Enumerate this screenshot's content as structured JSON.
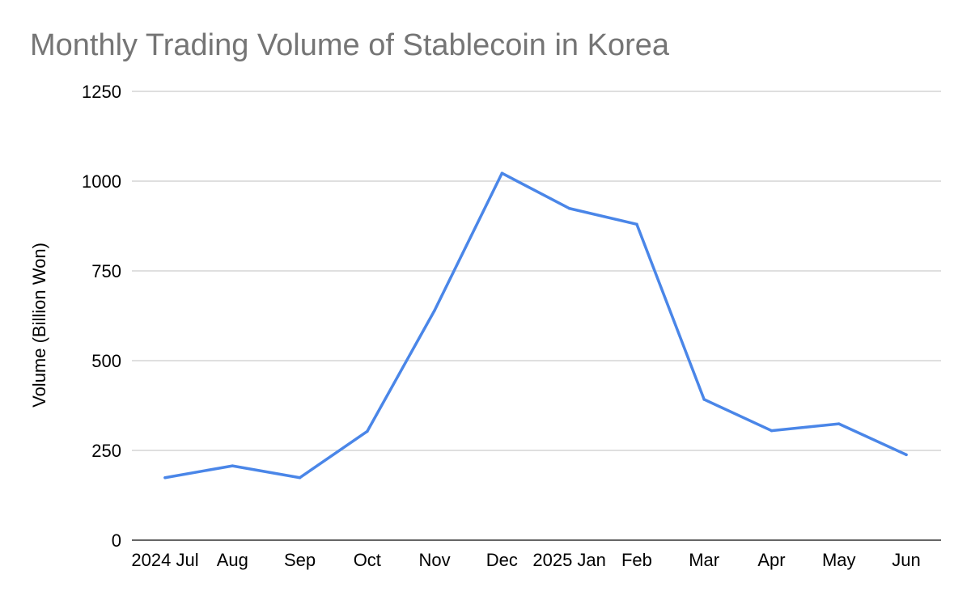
{
  "chart_data": {
    "type": "line",
    "title": "Monthly Trading Volume of Stablecoin in Korea",
    "xlabel": "",
    "ylabel": "Volume (Billion Won)",
    "categories": [
      "2024 Jul",
      "Aug",
      "Sep",
      "Oct",
      "Nov",
      "Dec",
      "2025 Jan",
      "Feb",
      "Mar",
      "Apr",
      "May",
      "Jun"
    ],
    "series": [
      {
        "values": [
          174,
          207,
          174,
          303,
          640,
          1022,
          924,
          880,
          392,
          305,
          324,
          238
        ],
        "color": "#4a86e8"
      }
    ],
    "ylim": [
      0,
      1250
    ],
    "yticks": [
      "0",
      "250",
      "500",
      "750",
      "1000",
      "1250"
    ],
    "grid": true,
    "legend": "none"
  }
}
